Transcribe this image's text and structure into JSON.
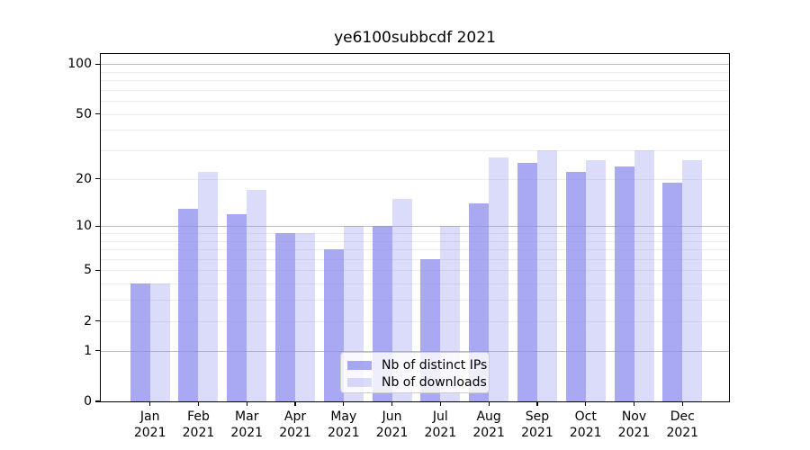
{
  "title": "ye6100subbcdf 2021",
  "colors": {
    "bar_base": "#8888ee",
    "bar_ips": "rgba(136,136,238,0.73)",
    "bar_downloads": "rgba(136,136,238,0.30)",
    "major_grid": "#bdbdbd",
    "minor_grid": "#ececec",
    "spine": "#000000",
    "legend_border": "#cccccc",
    "text": "#000000"
  },
  "legend": {
    "items": [
      {
        "label": "Nb of distinct IPs",
        "color": "rgba(136,136,238,0.73)"
      },
      {
        "label": "Nb of downloads",
        "color": "rgba(136,136,238,0.30)"
      }
    ],
    "position": "lower center"
  },
  "chart_data": {
    "type": "bar",
    "title": "ye6100subbcdf 2021",
    "categories": [
      "Jan 2021",
      "Feb 2021",
      "Mar 2021",
      "Apr 2021",
      "May 2021",
      "Jun 2021",
      "Jul 2021",
      "Aug 2021",
      "Sep 2021",
      "Oct 2021",
      "Nov 2021",
      "Dec 2021"
    ],
    "series": [
      {
        "name": "Nb of distinct IPs",
        "values": [
          4,
          13,
          12,
          9,
          7,
          10,
          6,
          14,
          25,
          22,
          24,
          19
        ],
        "color": "rgba(136,136,238,0.73)"
      },
      {
        "name": "Nb of downloads",
        "values": [
          4,
          22,
          17,
          9,
          10,
          15,
          10,
          27,
          30,
          26,
          30,
          26
        ],
        "color": "rgba(136,136,238,0.30)"
      }
    ],
    "xlabel": "",
    "ylabel": "",
    "yscale": "log1p",
    "ylim": [
      0,
      115
    ],
    "yticks": [
      100,
      50,
      20,
      10,
      5,
      2,
      1,
      0
    ],
    "minor_gridline_values": [
      2,
      3,
      4,
      5,
      6,
      7,
      8,
      9,
      20,
      30,
      40,
      50,
      60,
      70,
      80,
      90
    ],
    "major_gridline_values": [
      1,
      10,
      100
    ],
    "grid": "on",
    "legend_position": "lower center"
  }
}
